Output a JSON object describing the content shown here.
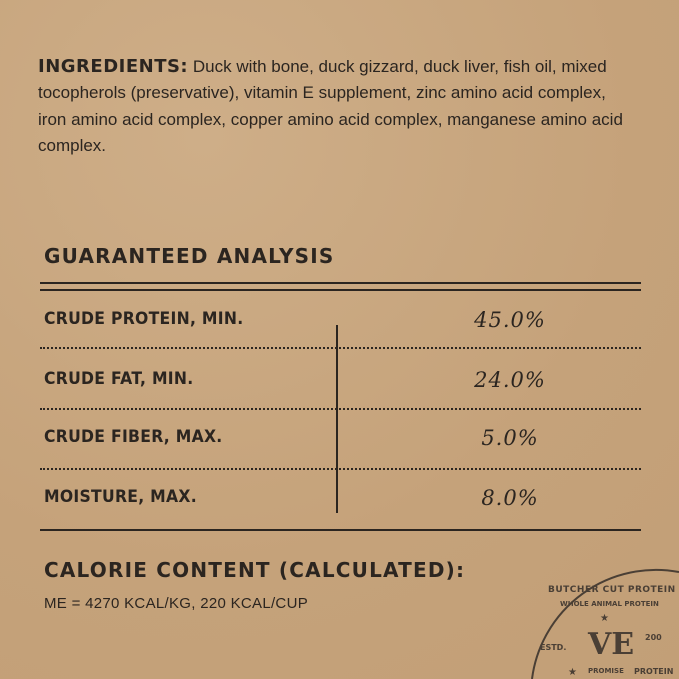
{
  "ingredients": {
    "label": "INGREDIENTS:",
    "text": "Duck with bone, duck gizzard, duck liver, fish oil, mixed tocopherols (preservative), vitamin E supplement, zinc amino acid complex, iron amino acid complex, copper amino acid complex, manganese amino acid complex."
  },
  "guaranteed_analysis": {
    "title": "GUARANTEED ANALYSIS",
    "rows": [
      {
        "label": "CRUDE PROTEIN, MIN.",
        "value": "45.0%"
      },
      {
        "label": "CRUDE FAT, MIN.",
        "value": "24.0%"
      },
      {
        "label": "CRUDE FIBER, MAX.",
        "value": "5.0%"
      },
      {
        "label": "MOISTURE, MAX.",
        "value": "8.0%"
      }
    ]
  },
  "calorie": {
    "title": "CALORIE CONTENT (CALCULATED):",
    "value": "ME = 4270 KCAL/KG, 220 KCAL/CUP"
  },
  "stamp": {
    "outer_text": "BUTCHER CUT PROTEIN",
    "inner_text": "WHOLE ANIMAL PROTEIN",
    "monogram": "VE",
    "estd": "ESTD.",
    "year_fragment": "200",
    "promise_fragment": "PROMISE",
    "protein_fragment": "PROTEIN"
  },
  "colors": {
    "background": "#c8a67f",
    "ink": "#2b2520"
  }
}
